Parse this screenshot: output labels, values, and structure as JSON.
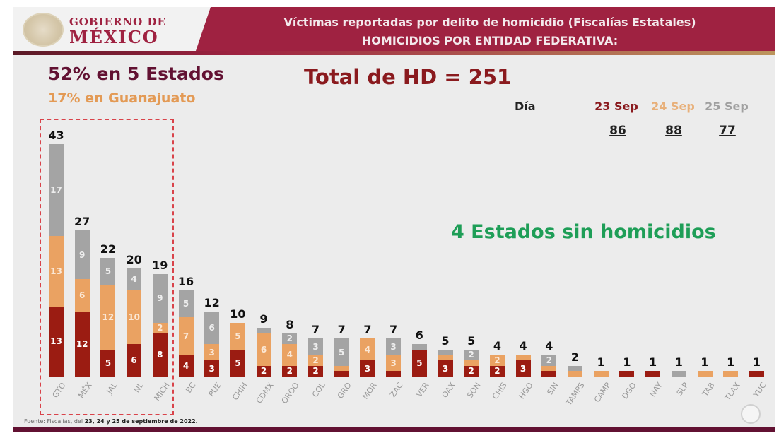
{
  "header": {
    "logo_line1": "GOBIERNO DE",
    "logo_line2": "MÉXICO",
    "title_line1": "Víctimas reportadas por delito de homicidio (Fiscalías Estatales)",
    "title_line2": "HOMICIDIOS POR ENTIDAD FEDERATIVA:"
  },
  "summary": {
    "stat_top5": "52% en 5 Estados",
    "stat_gto": "17% en Guanajuato",
    "total": "Total de HD = 251",
    "no_homicides": "4 Estados sin homicidios"
  },
  "days": {
    "label": "Día",
    "columns": [
      {
        "date": "23 Sep",
        "total": "86",
        "color": "#8a1a1e"
      },
      {
        "date": "24 Sep",
        "total": "88",
        "color": "#e8b07a"
      },
      {
        "date": "25 Sep",
        "total": "77",
        "color": "#a0a0a0"
      }
    ]
  },
  "footer": {
    "source_prefix": "Fuente: Fiscalías, del",
    "source_bold": "23, 24 y 25 de septiembre de 2022."
  },
  "colors": {
    "brand": "#9f2241",
    "sep23": "#9b1c12",
    "sep24": "#eaa262",
    "sep25": "#a4a4a4",
    "highlight": "#1e9e57"
  },
  "chart_data": {
    "type": "bar",
    "stacked": true,
    "title": "Víctimas reportadas por delito de homicidio (Fiscalías Estatales) - HOMICIDIOS POR ENTIDAD FEDERATIVA",
    "xlabel": "",
    "ylabel": "",
    "categories": [
      "GTO",
      "MÉX",
      "JAL",
      "NL",
      "MICH",
      "BC",
      "PUE",
      "CHIH",
      "CDMX",
      "QROO",
      "COL",
      "GRO",
      "MOR",
      "ZAC",
      "VER",
      "OAX",
      "SON",
      "CHIS",
      "HGO",
      "SIN",
      "TAMPS",
      "CAMP",
      "DGO",
      "NAY",
      "SLP",
      "TAB",
      "TLAX",
      "YUC"
    ],
    "totals": [
      43,
      27,
      22,
      20,
      19,
      16,
      12,
      10,
      9,
      8,
      7,
      7,
      7,
      7,
      6,
      5,
      5,
      4,
      4,
      4,
      2,
      1,
      1,
      1,
      1,
      1,
      1,
      1
    ],
    "series": [
      {
        "name": "23 Sep",
        "values": [
          13,
          12,
          5,
          6,
          8,
          4,
          3,
          5,
          2,
          2,
          2,
          1,
          3,
          1,
          5,
          3,
          2,
          2,
          3,
          1,
          0,
          0,
          1,
          1,
          0,
          0,
          0,
          1
        ]
      },
      {
        "name": "24 Sep",
        "values": [
          13,
          6,
          12,
          10,
          2,
          7,
          3,
          5,
          6,
          4,
          2,
          1,
          4,
          3,
          0,
          1,
          1,
          2,
          1,
          1,
          1,
          1,
          0,
          0,
          0,
          1,
          1,
          0
        ]
      },
      {
        "name": "25 Sep",
        "values": [
          17,
          9,
          5,
          4,
          9,
          5,
          6,
          0,
          1,
          2,
          3,
          5,
          0,
          3,
          1,
          1,
          2,
          0,
          0,
          2,
          1,
          0,
          0,
          0,
          1,
          0,
          0,
          0
        ]
      }
    ],
    "legend": [
      "23 Sep",
      "24 Sep",
      "25 Sep"
    ],
    "annotations": [
      "52% en 5 Estados",
      "17% en Guanajuato",
      "Total de HD = 251",
      "4 Estados sin homicidios"
    ],
    "grid": false,
    "ylim": [
      0,
      45
    ]
  }
}
